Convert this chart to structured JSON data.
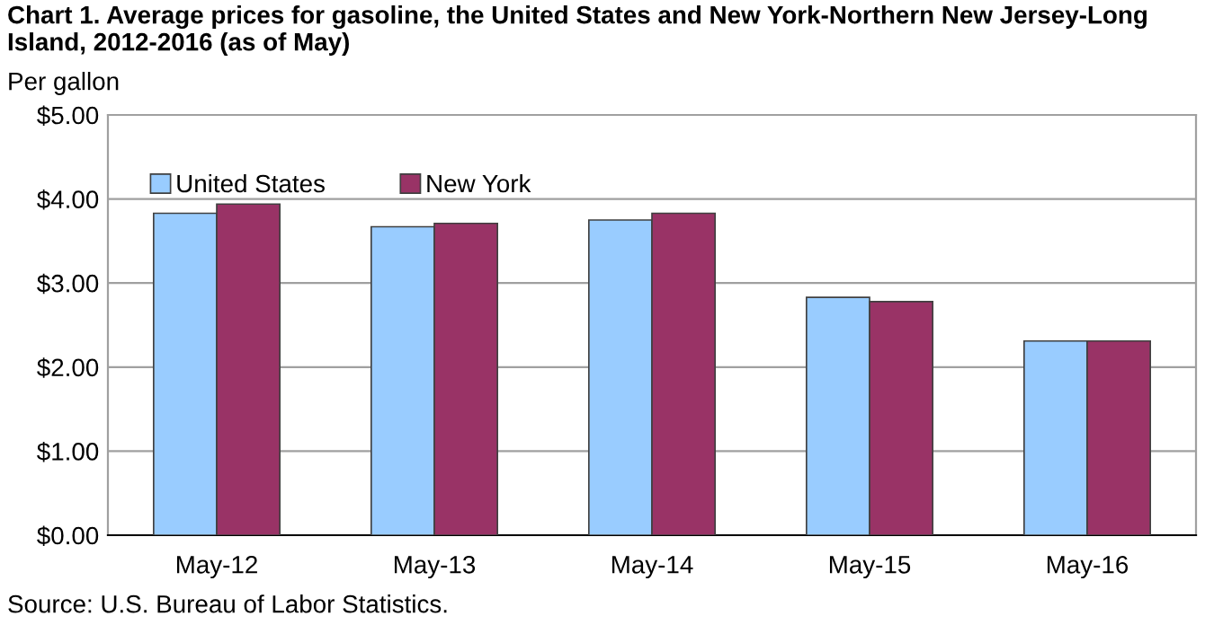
{
  "chart_data": {
    "type": "bar",
    "title": "Chart 1. Average prices for gasoline, the United States and New York-Northern New Jersey-Long Island, 2012-2016 (as of May)",
    "ylabel": "Per gallon",
    "categories": [
      "May-12",
      "May-13",
      "May-14",
      "May-15",
      "May-16"
    ],
    "series": [
      {
        "name": "United States",
        "color": "#99ccff",
        "values": [
          3.83,
          3.67,
          3.75,
          2.83,
          2.31
        ]
      },
      {
        "name": "New York",
        "color": "#993366",
        "values": [
          3.94,
          3.71,
          3.83,
          2.78,
          2.31
        ]
      }
    ],
    "ylim": [
      0,
      5
    ],
    "yticks": [
      {
        "value": 0,
        "label": "$0.00"
      },
      {
        "value": 1,
        "label": "$1.00"
      },
      {
        "value": 2,
        "label": "$2.00"
      },
      {
        "value": 3,
        "label": "$3.00"
      },
      {
        "value": 4,
        "label": "$4.00"
      },
      {
        "value": 5,
        "label": "$5.00"
      }
    ],
    "grid": "y",
    "legend": "top left",
    "annotations": [
      "Source: U.S. Bureau of Labor Statistics."
    ]
  }
}
